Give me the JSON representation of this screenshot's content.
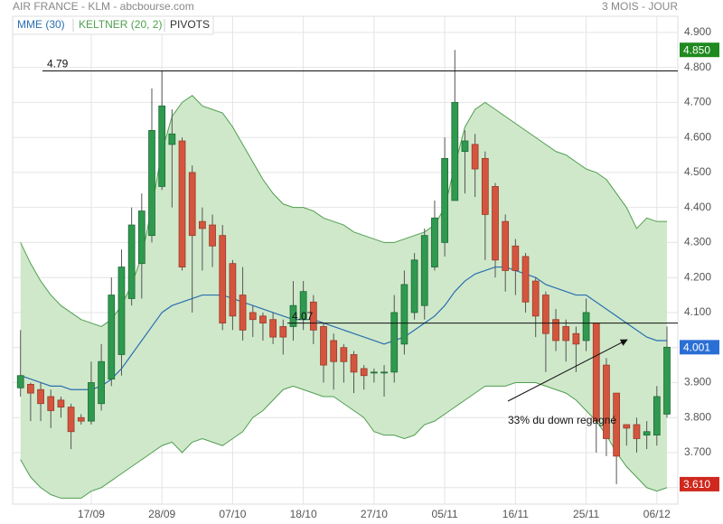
{
  "chart_data": {
    "type": "candlestick",
    "title": "AIR FRANCE - KLM - abcbourse.com",
    "period": "3 MOIS - JOUR",
    "categories": [
      null,
      null,
      null,
      null,
      null,
      null,
      null,
      "17/09",
      null,
      null,
      null,
      null,
      null,
      null,
      "28/09",
      null,
      null,
      null,
      null,
      null,
      null,
      "07/10",
      null,
      null,
      null,
      null,
      null,
      null,
      "18/10",
      null,
      null,
      null,
      null,
      null,
      null,
      "27/10",
      null,
      null,
      null,
      null,
      null,
      null,
      "05/11",
      null,
      null,
      null,
      null,
      null,
      null,
      "16/11",
      null,
      null,
      null,
      null,
      null,
      null,
      "25/11",
      null,
      null,
      null,
      null,
      null,
      null,
      "06/12",
      null
    ],
    "candles": {
      "up_color": "#2f9a4f",
      "down_color": "#d4553e",
      "open": [
        3.885,
        3.895,
        3.88,
        3.86,
        3.85,
        3.83,
        3.8,
        3.79,
        3.84,
        3.91,
        3.98,
        4.14,
        4.24,
        4.32,
        4.46,
        4.58,
        4.59,
        4.5,
        4.36,
        4.35,
        4.32,
        4.24,
        4.15,
        4.1,
        4.09,
        4.08,
        4.06,
        4.06,
        4.08,
        4.13,
        4.06,
        4.02,
        4.0,
        3.98,
        3.94,
        3.93,
        3.93,
        3.93,
        4.01,
        4.1,
        4.12,
        4.23,
        4.3,
        4.42,
        4.56,
        4.58,
        4.54,
        4.46,
        4.36,
        4.29,
        4.26,
        4.19,
        4.15,
        4.08,
        4.06,
        4.04,
        4.02,
        4.07,
        3.95,
        3.87,
        3.78,
        3.78,
        3.75,
        3.75,
        3.81
      ],
      "high": [
        4.05,
        3.9,
        3.9,
        3.88,
        3.86,
        3.84,
        3.81,
        3.96,
        4.01,
        4.2,
        4.28,
        4.4,
        4.44,
        4.74,
        4.79,
        4.68,
        4.6,
        4.52,
        4.4,
        4.38,
        4.35,
        4.25,
        4.23,
        4.12,
        4.1,
        4.1,
        4.08,
        4.19,
        4.19,
        4.15,
        4.07,
        4.04,
        4.01,
        3.99,
        3.95,
        3.94,
        3.95,
        4.15,
        4.22,
        4.27,
        4.34,
        4.42,
        4.6,
        4.85,
        4.62,
        4.61,
        4.56,
        4.47,
        4.38,
        4.31,
        4.27,
        4.2,
        4.16,
        4.11,
        4.08,
        4.06,
        4.14,
        4.07,
        3.97,
        3.87,
        3.78,
        3.8,
        3.79,
        3.89,
        4.06
      ],
      "low": [
        3.86,
        3.79,
        3.79,
        3.77,
        3.8,
        3.71,
        3.78,
        3.78,
        3.82,
        3.89,
        3.92,
        4.12,
        4.14,
        4.3,
        4.45,
        4.4,
        4.22,
        4.1,
        4.22,
        4.23,
        4.05,
        4.05,
        4.02,
        4.03,
        4.02,
        4.01,
        3.98,
        4.02,
        4.05,
        4.01,
        3.9,
        3.88,
        3.9,
        3.87,
        3.88,
        3.9,
        3.86,
        3.9,
        3.98,
        4.08,
        4.08,
        4.22,
        4.26,
        4.42,
        4.44,
        4.43,
        4.25,
        4.2,
        4.16,
        4.15,
        4.1,
        4.03,
        3.93,
        3.99,
        3.96,
        3.93,
        3.99,
        3.7,
        3.69,
        3.61,
        3.72,
        3.7,
        3.71,
        3.72,
        3.8
      ],
      "close": [
        3.92,
        3.87,
        3.84,
        3.82,
        3.83,
        3.76,
        3.79,
        3.9,
        3.96,
        4.15,
        4.23,
        4.35,
        4.39,
        4.62,
        4.69,
        4.61,
        4.23,
        4.32,
        4.34,
        4.29,
        4.07,
        4.09,
        4.05,
        4.08,
        4.07,
        4.03,
        4.03,
        4.12,
        4.16,
        4.05,
        3.95,
        3.96,
        3.96,
        3.93,
        3.92,
        3.93,
        3.93,
        4.1,
        4.18,
        4.25,
        4.32,
        4.37,
        4.54,
        4.7,
        4.59,
        4.51,
        4.38,
        4.25,
        4.22,
        4.22,
        4.13,
        4.09,
        4.04,
        4.02,
        4.02,
        4.01,
        4.1,
        3.79,
        3.74,
        3.69,
        3.77,
        3.74,
        3.76,
        3.86,
        4.001
      ]
    },
    "series": [
      {
        "name": "MME (30)",
        "color": "#2a6fb0",
        "values": [
          3.92,
          3.91,
          3.9,
          3.89,
          3.89,
          3.88,
          3.88,
          3.88,
          3.89,
          3.91,
          3.94,
          3.98,
          4.02,
          4.06,
          4.1,
          4.12,
          4.13,
          4.14,
          4.15,
          4.15,
          4.15,
          4.14,
          4.13,
          4.12,
          4.11,
          4.1,
          4.09,
          4.08,
          4.08,
          4.08,
          4.07,
          4.06,
          4.05,
          4.04,
          4.03,
          4.02,
          4.01,
          4.02,
          4.03,
          4.05,
          4.07,
          4.09,
          4.12,
          4.16,
          4.19,
          4.21,
          4.22,
          4.23,
          4.23,
          4.22,
          4.21,
          4.2,
          4.18,
          4.17,
          4.16,
          4.15,
          4.15,
          4.13,
          4.11,
          4.09,
          4.07,
          4.05,
          4.03,
          4.02,
          4.02
        ]
      }
    ],
    "keltner": {
      "name": "KELTNER (20, 2)",
      "color": "#4f9f4f",
      "fill": "#cfe8ca",
      "upper": [
        4.3,
        4.24,
        4.19,
        4.15,
        4.12,
        4.1,
        4.08,
        4.07,
        4.06,
        4.08,
        4.12,
        4.18,
        4.26,
        4.4,
        4.56,
        4.66,
        4.7,
        4.72,
        4.69,
        4.68,
        4.67,
        4.63,
        4.58,
        4.53,
        4.48,
        4.44,
        4.41,
        4.4,
        4.4,
        4.39,
        4.37,
        4.36,
        4.35,
        4.33,
        4.32,
        4.31,
        4.3,
        4.3,
        4.31,
        4.32,
        4.33,
        4.35,
        4.4,
        4.52,
        4.63,
        4.68,
        4.7,
        4.68,
        4.66,
        4.64,
        4.62,
        4.6,
        4.58,
        4.56,
        4.55,
        4.53,
        4.51,
        4.5,
        4.48,
        4.44,
        4.4,
        4.34,
        4.37,
        4.36,
        4.36
      ],
      "lower": [
        3.68,
        3.63,
        3.6,
        3.58,
        3.57,
        3.57,
        3.57,
        3.59,
        3.6,
        3.62,
        3.64,
        3.66,
        3.68,
        3.7,
        3.72,
        3.73,
        3.7,
        3.73,
        3.74,
        3.73,
        3.72,
        3.74,
        3.76,
        3.8,
        3.82,
        3.85,
        3.88,
        3.89,
        3.88,
        3.87,
        3.86,
        3.86,
        3.84,
        3.82,
        3.8,
        3.76,
        3.75,
        3.75,
        3.74,
        3.75,
        3.78,
        3.79,
        3.81,
        3.83,
        3.85,
        3.87,
        3.89,
        3.89,
        3.89,
        3.9,
        3.9,
        3.9,
        3.89,
        3.88,
        3.87,
        3.85,
        3.82,
        3.79,
        3.75,
        3.7,
        3.66,
        3.63,
        3.6,
        3.59,
        3.6
      ]
    },
    "pivots": {
      "name": "PIVOTS",
      "color": "#111111",
      "values": [
        4.79,
        4.07
      ]
    },
    "markers": [
      {
        "value": 4.85,
        "label": "4.850",
        "color": "#1f8a1f"
      },
      {
        "value": 4.001,
        "color": "#2a6fd6"
      },
      {
        "value": 3.61,
        "label": "3.610",
        "color": "#d0281e"
      }
    ],
    "annotation": "33% du down regagné",
    "ylim": [
      3.553,
      4.946
    ],
    "yticks": [
      {
        "value": 3.6,
        "label": "3.600"
      },
      {
        "value": 3.7,
        "label": "3.700"
      },
      {
        "value": 3.8,
        "label": "3.800"
      },
      {
        "value": 3.9,
        "label": "3.900"
      },
      {
        "value": 4.0,
        "label": "4.000"
      },
      {
        "value": 4.1,
        "label": "4.100"
      },
      {
        "value": 4.2,
        "label": "4.200"
      },
      {
        "value": 4.3,
        "label": "4.300"
      },
      {
        "value": 4.4,
        "label": "4.400"
      },
      {
        "value": 4.5,
        "label": "4.500"
      },
      {
        "value": 4.6,
        "label": "4.600"
      },
      {
        "value": 4.7,
        "label": "4.700"
      },
      {
        "value": 4.8,
        "label": "4.800"
      },
      {
        "value": 4.9,
        "label": "4.900"
      }
    ],
    "grid": true
  }
}
